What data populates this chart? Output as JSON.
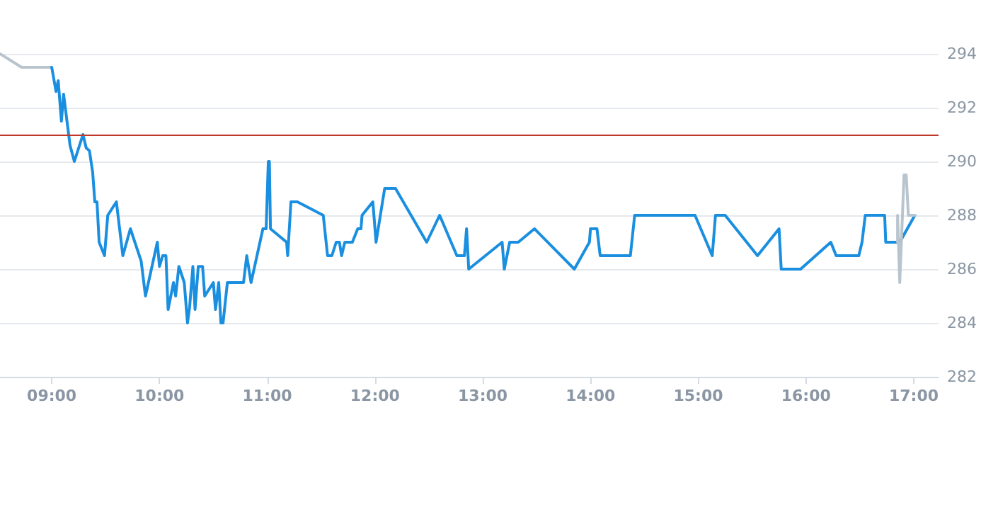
{
  "chart_data": {
    "type": "line",
    "xlim": [
      8.52,
      17.23
    ],
    "ylim": [
      282,
      294
    ],
    "xticks": [
      {
        "value": 9,
        "label": "09:00"
      },
      {
        "value": 10,
        "label": "10:00"
      },
      {
        "value": 11,
        "label": "11:00"
      },
      {
        "value": 12,
        "label": "12:00"
      },
      {
        "value": 13,
        "label": "13:00"
      },
      {
        "value": 14,
        "label": "14:00"
      },
      {
        "value": 15,
        "label": "15:00"
      },
      {
        "value": 16,
        "label": "16:00"
      },
      {
        "value": 17,
        "label": "17:00"
      }
    ],
    "yticks": [
      282,
      284,
      286,
      288,
      290,
      292,
      294
    ],
    "grid": "y",
    "marker": "none",
    "line_style": "solid",
    "ref_lines": [
      {
        "axis": "y",
        "value": 291,
        "color": "#c0392b"
      }
    ],
    "series": [
      {
        "color": "#b8c4ce",
        "x": [
          8.52,
          8.72,
          9.0
        ],
        "values": [
          294.0,
          293.5,
          293.5
        ]
      },
      {
        "color": "#1a8fe0",
        "x": [
          9.0,
          9.04,
          9.06,
          9.09,
          9.11,
          9.17,
          9.21,
          9.29,
          9.32,
          9.35,
          9.38,
          9.4,
          9.42,
          9.44,
          9.49,
          9.52,
          9.6,
          9.66,
          9.73,
          9.83,
          9.87,
          9.98,
          10.0,
          10.03,
          10.06,
          10.08,
          10.13,
          10.15,
          10.18,
          10.23,
          10.26,
          10.28,
          10.31,
          10.33,
          10.36,
          10.4,
          10.42,
          10.5,
          10.52,
          10.55,
          10.57,
          10.59,
          10.63,
          10.78,
          10.81,
          10.85,
          10.96,
          10.99,
          11.01,
          11.02,
          11.03,
          11.18,
          11.19,
          11.22,
          11.28,
          11.52,
          11.56,
          11.6,
          11.64,
          11.67,
          11.69,
          11.72,
          11.79,
          11.84,
          11.87,
          11.88,
          11.98,
          12.01,
          12.09,
          12.19,
          12.48,
          12.6,
          12.76,
          12.83,
          12.85,
          12.87,
          13.18,
          13.2,
          13.25,
          13.33,
          13.48,
          13.85,
          13.99,
          14.0,
          14.06,
          14.09,
          14.37,
          14.41,
          14.97,
          15.13,
          15.16,
          15.25,
          15.55,
          15.75,
          15.77,
          15.95,
          16.23,
          16.28,
          16.49,
          16.52,
          16.55,
          16.73,
          16.74,
          16.87,
          17.01
        ],
        "values": [
          293.5,
          292.6,
          293.0,
          291.5,
          292.5,
          290.6,
          290.0,
          291.0,
          290.5,
          290.4,
          289.6,
          288.5,
          288.5,
          287.0,
          286.5,
          288.0,
          288.5,
          286.5,
          287.5,
          286.3,
          285.0,
          287.0,
          286.1,
          286.5,
          286.5,
          284.5,
          285.5,
          285.0,
          286.1,
          285.5,
          284.0,
          284.6,
          286.1,
          284.5,
          286.1,
          286.1,
          285.0,
          285.5,
          284.5,
          285.5,
          284.0,
          284.0,
          285.5,
          285.5,
          286.5,
          285.5,
          287.5,
          287.5,
          290.0,
          290.0,
          287.5,
          287.0,
          286.5,
          288.5,
          288.5,
          288.0,
          286.5,
          286.5,
          287.0,
          287.0,
          286.5,
          287.0,
          287.0,
          287.5,
          287.5,
          288.0,
          288.5,
          287.0,
          289.0,
          289.0,
          287.0,
          288.0,
          286.5,
          286.5,
          287.5,
          286.0,
          287.0,
          286.0,
          287.0,
          287.0,
          287.5,
          286.0,
          287.0,
          287.5,
          287.5,
          286.5,
          286.5,
          288.0,
          288.0,
          286.5,
          288.0,
          288.0,
          286.5,
          287.5,
          286.0,
          286.0,
          287.0,
          286.5,
          286.5,
          287.0,
          288.0,
          288.0,
          287.0,
          287.0,
          288.0
        ]
      },
      {
        "color": "#b8c4ce",
        "x": [
          16.85,
          16.85,
          16.87,
          16.91,
          16.93,
          16.95,
          17.01
        ],
        "values": [
          287.0,
          288.0,
          285.5,
          289.5,
          289.5,
          288.0,
          288.0
        ]
      }
    ]
  }
}
